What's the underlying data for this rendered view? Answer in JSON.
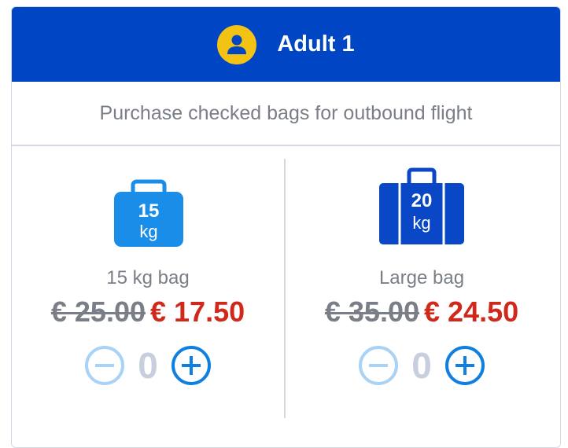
{
  "header": {
    "title": "Adult 1",
    "icon": "user-avatar-icon",
    "accent": "#0046c4",
    "avatar_color": "#f2c314"
  },
  "subtitle": "Purchase checked bags for outbound flight",
  "bags": [
    {
      "icon_label_num": "15",
      "icon_label_unit": "kg",
      "name": "15 kg bag",
      "old_price": "€ 25.00",
      "new_price": "€ 17.50",
      "quantity": "0",
      "color": "#1a8de8"
    },
    {
      "icon_label_num": "20",
      "icon_label_unit": "kg",
      "name": "Large bag",
      "old_price": "€ 35.00",
      "new_price": "€ 24.50",
      "quantity": "0",
      "color": "#0a47c6"
    }
  ]
}
